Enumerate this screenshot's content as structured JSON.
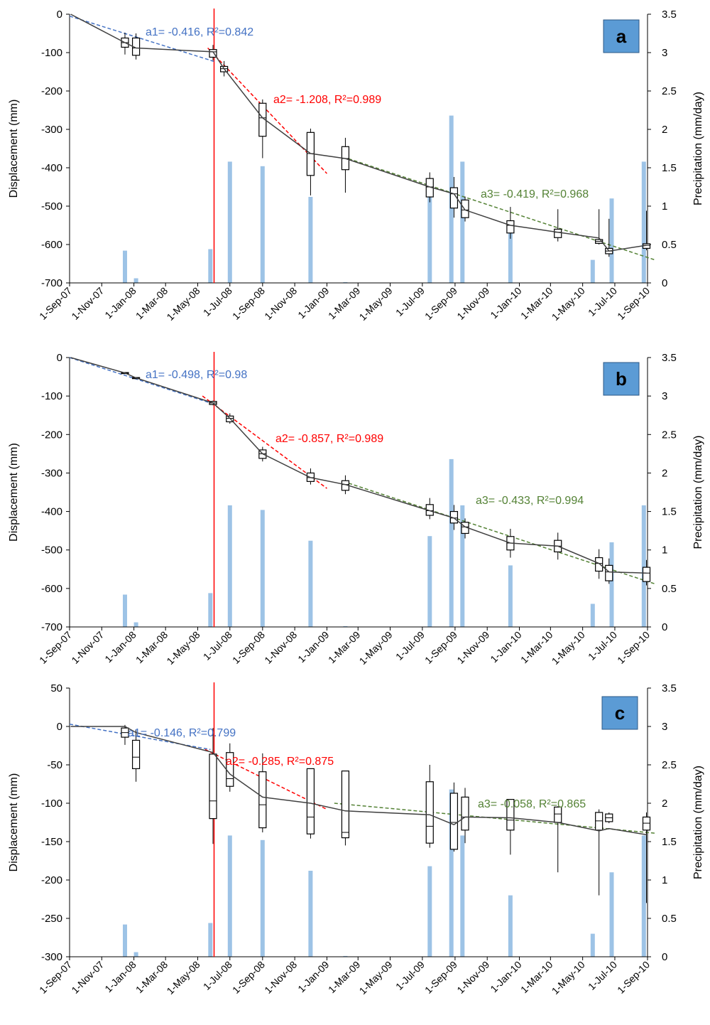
{
  "chart_data": [
    {
      "type": "box+line+bar",
      "panel_label": "a",
      "x_ticks": [
        "1-Sep-07",
        "1-Nov-07",
        "1-Jan-08",
        "1-Mar-08",
        "1-May-08",
        "1-Jul-08",
        "1-Sep-08",
        "1-Nov-08",
        "1-Jan-09",
        "1-Mar-09",
        "1-May-09",
        "1-Jul-09",
        "1-Sep-09",
        "1-Nov-09",
        "1-Jan-10",
        "1-Mar-10",
        "1-May-10",
        "1-Jul-10",
        "1-Sep-10"
      ],
      "ylabel": "Displacement (mm)",
      "y2label": "Precipitation (mm/day)",
      "ylim": [
        -700,
        0
      ],
      "y_ticks": [
        0,
        -100,
        -200,
        -300,
        -400,
        -500,
        -600,
        -700
      ],
      "y2lim": [
        0,
        3.5
      ],
      "y2_ticks": [
        0,
        0.5,
        1,
        1.5,
        2,
        2.5,
        3,
        3.5
      ],
      "vline_date": "2008-06-01",
      "line": [
        [
          "2007-09-03",
          0
        ],
        [
          "2007-12-15",
          -74
        ],
        [
          "2008-01-05",
          -88
        ],
        [
          "2008-05-30",
          -98
        ],
        [
          "2008-06-20",
          -142
        ],
        [
          "2008-09-01",
          -270
        ],
        [
          "2008-12-01",
          -363
        ],
        [
          "2009-02-05",
          -376
        ],
        [
          "2009-07-15",
          -450
        ],
        [
          "2009-08-30",
          -468
        ],
        [
          "2009-09-20",
          -510
        ],
        [
          "2009-12-15",
          -550
        ],
        [
          "2010-03-15",
          -568
        ],
        [
          "2010-06-01",
          -583
        ],
        [
          "2010-06-20",
          -617
        ],
        [
          "2010-08-30",
          -602
        ]
      ],
      "boxes": [
        {
          "date": "2007-12-15",
          "min": -105,
          "q1": -86,
          "med": -74,
          "q3": -62,
          "max": -48
        },
        {
          "date": "2008-01-05",
          "min": -118,
          "q1": -107,
          "med": -88,
          "q3": -62,
          "max": -50
        },
        {
          "date": "2008-05-30",
          "min": -120,
          "q1": -112,
          "med": -98,
          "q3": -92,
          "max": -80
        },
        {
          "date": "2008-06-20",
          "min": -162,
          "q1": -150,
          "med": -142,
          "q3": -136,
          "max": -122
        },
        {
          "date": "2008-09-01",
          "min": -375,
          "q1": -318,
          "med": -270,
          "q3": -232,
          "max": -222
        },
        {
          "date": "2008-12-01",
          "min": -472,
          "q1": -420,
          "med": -363,
          "q3": -308,
          "max": -298
        },
        {
          "date": "2009-02-05",
          "min": -465,
          "q1": -405,
          "med": -376,
          "q3": -345,
          "max": -322
        },
        {
          "date": "2009-07-15",
          "min": -490,
          "q1": -476,
          "med": -450,
          "q3": -428,
          "max": -412
        },
        {
          "date": "2009-08-30",
          "min": -530,
          "q1": -505,
          "med": -468,
          "q3": -452,
          "max": -424
        },
        {
          "date": "2009-09-20",
          "min": -540,
          "q1": -530,
          "med": -510,
          "q3": -484,
          "max": -475
        },
        {
          "date": "2009-12-15",
          "min": -585,
          "q1": -570,
          "med": -550,
          "q3": -538,
          "max": -502
        },
        {
          "date": "2010-03-15",
          "min": -592,
          "q1": -582,
          "med": -568,
          "q3": -560,
          "max": -508
        },
        {
          "date": "2010-06-01",
          "min": -600,
          "q1": -597,
          "med": -592,
          "q3": -587,
          "max": -508
        },
        {
          "date": "2010-06-20",
          "min": -632,
          "q1": -624,
          "med": -617,
          "q3": -610,
          "max": -533
        },
        {
          "date": "2010-08-30",
          "min": -615,
          "q1": -610,
          "med": -602,
          "q3": -598,
          "max": -512
        }
      ],
      "fits": [
        {
          "label": "a1= -0.416, R²=0.842",
          "color": "#4472c4",
          "from": [
            "2007-09-01",
            -5
          ],
          "to": [
            "2008-06-01",
            -123
          ]
        },
        {
          "label": "a2= -1.208, R²=0.989",
          "color": "#ff0000",
          "from": [
            "2008-05-20",
            -88
          ],
          "to": [
            "2009-01-01",
            -415
          ]
        },
        {
          "label": "a3= -0.419, R²=0.968",
          "color": "#548235",
          "from": [
            "2009-02-01",
            -372
          ],
          "to": [
            "2010-09-15",
            -640
          ]
        }
      ],
      "precip": [
        [
          "2007-12-15",
          0.42
        ],
        [
          "2008-01-05",
          0.06
        ],
        [
          "2008-05-25",
          0.44
        ],
        [
          "2008-07-01",
          1.58
        ],
        [
          "2008-09-01",
          1.52
        ],
        [
          "2008-12-01",
          1.12
        ],
        [
          "2009-02-05",
          0.01
        ],
        [
          "2009-07-15",
          1.18
        ],
        [
          "2009-08-25",
          2.18
        ],
        [
          "2009-09-15",
          1.58
        ],
        [
          "2009-12-15",
          0.8
        ],
        [
          "2010-05-20",
          0.3
        ],
        [
          "2010-06-25",
          1.1
        ],
        [
          "2010-08-25",
          1.58
        ]
      ]
    },
    {
      "type": "box+line+bar",
      "panel_label": "b",
      "x_ticks": [
        "1-Sep-07",
        "1-Nov-07",
        "1-Jan-08",
        "1-Mar-08",
        "1-May-08",
        "1-Jul-08",
        "1-Sep-08",
        "1-Nov-08",
        "1-Jan-09",
        "1-Mar-09",
        "1-May-09",
        "1-Jul-09",
        "1-Sep-09",
        "1-Nov-09",
        "1-Jan-10",
        "1-Mar-10",
        "1-May-10",
        "1-Jul-10",
        "1-Sep-10"
      ],
      "ylabel": "Displacement (mm)",
      "y2label": "Precipitation (mm/day)",
      "ylim": [
        -700,
        0
      ],
      "y_ticks": [
        0,
        -100,
        -200,
        -300,
        -400,
        -500,
        -600,
        -700
      ],
      "y2lim": [
        0,
        3.5
      ],
      "y2_ticks": [
        0,
        0.5,
        1,
        1.5,
        2,
        2.5,
        3,
        3.5
      ],
      "vline_date": "2008-06-01",
      "line": [
        [
          "2007-09-03",
          0
        ],
        [
          "2007-12-15",
          -40
        ],
        [
          "2008-01-05",
          -53
        ],
        [
          "2008-05-30",
          -118
        ],
        [
          "2008-07-01",
          -158
        ],
        [
          "2008-09-01",
          -250
        ],
        [
          "2008-12-01",
          -312
        ],
        [
          "2009-02-05",
          -330
        ],
        [
          "2009-07-15",
          -398
        ],
        [
          "2009-08-30",
          -417
        ],
        [
          "2009-09-20",
          -440
        ],
        [
          "2009-12-15",
          -482
        ],
        [
          "2010-03-15",
          -490
        ],
        [
          "2010-06-01",
          -535
        ],
        [
          "2010-06-20",
          -557
        ],
        [
          "2010-08-30",
          -560
        ]
      ],
      "boxes": [
        {
          "date": "2007-12-15",
          "min": -42,
          "q1": -41,
          "med": -40,
          "q3": -39,
          "max": -38
        },
        {
          "date": "2008-01-05",
          "min": -55,
          "q1": -54,
          "med": -53,
          "q3": -52,
          "max": -51
        },
        {
          "date": "2008-05-30",
          "min": -124,
          "q1": -122,
          "med": -118,
          "q3": -114,
          "max": -112
        },
        {
          "date": "2008-07-01",
          "min": -172,
          "q1": -167,
          "med": -158,
          "q3": -152,
          "max": -145
        },
        {
          "date": "2008-09-01",
          "min": -270,
          "q1": -262,
          "med": -250,
          "q3": -240,
          "max": -232
        },
        {
          "date": "2008-12-01",
          "min": -330,
          "q1": -322,
          "med": -312,
          "q3": -300,
          "max": -288
        },
        {
          "date": "2009-02-05",
          "min": -355,
          "q1": -345,
          "med": -330,
          "q3": -320,
          "max": -306
        },
        {
          "date": "2009-07-15",
          "min": -420,
          "q1": -410,
          "med": -398,
          "q3": -382,
          "max": -365
        },
        {
          "date": "2009-08-30",
          "min": -448,
          "q1": -430,
          "med": -417,
          "q3": -400,
          "max": -383
        },
        {
          "date": "2009-09-20",
          "min": -470,
          "q1": -457,
          "med": -440,
          "q3": -428,
          "max": -418
        },
        {
          "date": "2009-12-15",
          "min": -520,
          "q1": -500,
          "med": -482,
          "q3": -465,
          "max": -445
        },
        {
          "date": "2010-03-15",
          "min": -525,
          "q1": -505,
          "med": -490,
          "q3": -475,
          "max": -455
        },
        {
          "date": "2010-06-01",
          "min": -575,
          "q1": -555,
          "med": -535,
          "q3": -520,
          "max": -498
        },
        {
          "date": "2010-06-20",
          "min": -588,
          "q1": -580,
          "med": -557,
          "q3": -540,
          "max": -522
        },
        {
          "date": "2010-08-30",
          "min": -592,
          "q1": -582,
          "med": -560,
          "q3": -545,
          "max": -526
        }
      ],
      "fits": [
        {
          "label": "a1= -0.498, R²=0.98",
          "color": "#4472c4",
          "from": [
            "2007-09-01",
            0
          ],
          "to": [
            "2008-05-25",
            -118
          ]
        },
        {
          "label": "a2= -0.857, R²=0.989",
          "color": "#ff0000",
          "from": [
            "2008-05-10",
            -100
          ],
          "to": [
            "2009-01-01",
            -340
          ]
        },
        {
          "label": "a3= -0.433, R²=0.994",
          "color": "#548235",
          "from": [
            "2009-02-01",
            -322
          ],
          "to": [
            "2010-09-15",
            -588
          ]
        }
      ],
      "precip": [
        [
          "2007-12-15",
          0.42
        ],
        [
          "2008-01-05",
          0.06
        ],
        [
          "2008-05-25",
          0.44
        ],
        [
          "2008-07-01",
          1.58
        ],
        [
          "2008-09-01",
          1.52
        ],
        [
          "2008-12-01",
          1.12
        ],
        [
          "2009-02-05",
          0.01
        ],
        [
          "2009-07-15",
          1.18
        ],
        [
          "2009-08-25",
          2.18
        ],
        [
          "2009-09-15",
          1.58
        ],
        [
          "2009-12-15",
          0.8
        ],
        [
          "2010-05-20",
          0.3
        ],
        [
          "2010-06-25",
          1.1
        ],
        [
          "2010-08-25",
          1.58
        ]
      ]
    },
    {
      "type": "box+line+bar",
      "panel_label": "c",
      "x_ticks": [
        "1-Sep-07",
        "1-Nov-07",
        "1-Jan-08",
        "1-Mar-08",
        "1-May-08",
        "1-Jul-08",
        "1-Sep-08",
        "1-Nov-08",
        "1-Jan-09",
        "1-Mar-09",
        "1-May-09",
        "1-Jul-09",
        "1-Sep-09",
        "1-Nov-09",
        "1-Jan-10",
        "1-Mar-10",
        "1-May-10",
        "1-Jul-10",
        "1-Sep-10"
      ],
      "ylabel": "Displacement (mm)",
      "y2label": "Precipitation (mm/day)",
      "ylim": [
        -300,
        50
      ],
      "y_ticks": [
        50,
        0,
        -50,
        -100,
        -150,
        -200,
        -250,
        -300
      ],
      "y2lim": [
        0,
        3.5
      ],
      "y2_ticks": [
        0,
        0.5,
        1,
        1.5,
        2,
        2.5,
        3,
        3.5
      ],
      "vline_date": "2008-06-01",
      "line": [
        [
          "2007-09-03",
          0
        ],
        [
          "2007-12-15",
          0
        ],
        [
          "2008-01-05",
          -8
        ],
        [
          "2008-05-30",
          -34
        ],
        [
          "2008-07-01",
          -62
        ],
        [
          "2008-09-01",
          -92
        ],
        [
          "2008-12-01",
          -100
        ],
        [
          "2009-02-05",
          -110
        ],
        [
          "2009-07-15",
          -115
        ],
        [
          "2009-08-30",
          -128
        ],
        [
          "2009-09-20",
          -118
        ],
        [
          "2009-12-15",
          -119
        ],
        [
          "2010-03-15",
          -125
        ],
        [
          "2010-06-01",
          -136
        ],
        [
          "2010-06-20",
          -133
        ],
        [
          "2010-08-30",
          -141
        ]
      ],
      "boxes": [
        {
          "date": "2007-12-15",
          "min": -24,
          "q1": -14,
          "med": -8,
          "q3": -2,
          "max": 2
        },
        {
          "date": "2008-01-05",
          "min": -72,
          "q1": -55,
          "med": -40,
          "q3": -18,
          "max": -5
        },
        {
          "date": "2008-05-30",
          "min": -153,
          "q1": -120,
          "med": -97,
          "q3": -36,
          "max": -2
        },
        {
          "date": "2008-07-01",
          "min": -85,
          "q1": -78,
          "med": -68,
          "q3": -34,
          "max": -22
        },
        {
          "date": "2008-09-01",
          "min": -138,
          "q1": -132,
          "med": -102,
          "q3": -59,
          "max": -35
        },
        {
          "date": "2008-12-01",
          "min": -146,
          "q1": -140,
          "med": -118,
          "q3": -55,
          "max": -55
        },
        {
          "date": "2009-02-05",
          "min": -155,
          "q1": -145,
          "med": -138,
          "q3": -58,
          "max": -58
        },
        {
          "date": "2009-07-15",
          "min": -158,
          "q1": -152,
          "med": -130,
          "q3": -72,
          "max": -50
        },
        {
          "date": "2009-08-30",
          "min": -163,
          "q1": -160,
          "med": -125,
          "q3": -87,
          "max": -73
        },
        {
          "date": "2009-09-20",
          "min": -152,
          "q1": -135,
          "med": -118,
          "q3": -92,
          "max": -80
        },
        {
          "date": "2009-12-15",
          "min": -167,
          "q1": -135,
          "med": -122,
          "q3": -95,
          "max": -95
        },
        {
          "date": "2010-03-15",
          "min": -190,
          "q1": -125,
          "med": -114,
          "q3": -105,
          "max": -104
        },
        {
          "date": "2010-06-01",
          "min": -220,
          "q1": -135,
          "med": -123,
          "q3": -112,
          "max": -108
        },
        {
          "date": "2010-06-20",
          "min": -126,
          "q1": -124,
          "med": -119,
          "q3": -114,
          "max": -112
        },
        {
          "date": "2010-08-30",
          "min": -230,
          "q1": -135,
          "med": -126,
          "q3": -118,
          "max": -112
        }
      ],
      "fits": [
        {
          "label": "a1= -0.146, R²=0.799",
          "color": "#4472c4",
          "from": [
            "2007-09-01",
            3
          ],
          "to": [
            "2008-05-25",
            -30
          ]
        },
        {
          "label": "a2= -0.285, R²=0.875",
          "color": "#ff0000",
          "from": [
            "2008-05-15",
            -30
          ],
          "to": [
            "2009-01-01",
            -108
          ]
        },
        {
          "label": "a3= -0.058, R²=0.865",
          "color": "#548235",
          "from": [
            "2009-01-15",
            -100
          ],
          "to": [
            "2010-09-15",
            -139
          ]
        }
      ],
      "precip": [
        [
          "2007-12-15",
          0.42
        ],
        [
          "2008-01-05",
          0.06
        ],
        [
          "2008-05-25",
          0.44
        ],
        [
          "2008-07-01",
          1.58
        ],
        [
          "2008-09-01",
          1.52
        ],
        [
          "2008-12-01",
          1.12
        ],
        [
          "2009-02-05",
          0.01
        ],
        [
          "2009-07-15",
          1.18
        ],
        [
          "2009-08-25",
          2.18
        ],
        [
          "2009-09-15",
          1.58
        ],
        [
          "2009-12-15",
          0.8
        ],
        [
          "2010-05-20",
          0.3
        ],
        [
          "2010-06-25",
          1.1
        ],
        [
          "2010-08-25",
          1.58
        ]
      ]
    }
  ],
  "colors": {
    "precip_bar": "#9dc3e6",
    "event_line": "#ff0000",
    "main_line": "#404040",
    "box_stroke": "#000000",
    "panel_label_bg": "#5b9bd5",
    "axis": "#000000"
  }
}
